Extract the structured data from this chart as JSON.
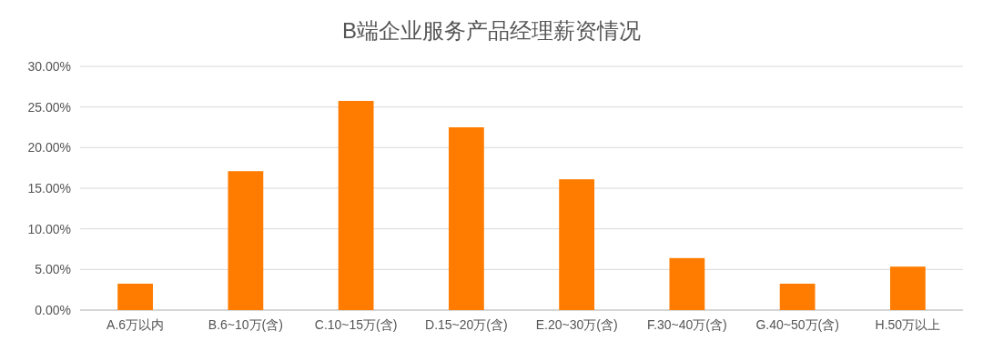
{
  "chart_data": {
    "type": "bar",
    "title": "B端企业服务产品经理薪资情况",
    "categories": [
      "A.6万以内",
      "B.6~10万(含)",
      "C.10~15万(含)",
      "D.15~20万(含)",
      "E.20~30万(含)",
      "F.30~40万(含)",
      "G.40~50万(含)",
      "H.50万以上"
    ],
    "values": [
      3.25,
      17.1,
      25.75,
      22.5,
      16.1,
      6.4,
      3.25,
      5.35
    ],
    "color": "#ff7c00",
    "ylim": [
      0,
      30
    ],
    "yticks": [
      {
        "value": 0,
        "label": "0.00%"
      },
      {
        "value": 5,
        "label": "5.00%"
      },
      {
        "value": 10,
        "label": "10.00%"
      },
      {
        "value": 15,
        "label": "15.00%"
      },
      {
        "value": 20,
        "label": "20.00%"
      },
      {
        "value": 25,
        "label": "25.00%"
      },
      {
        "value": 30,
        "label": "30.00%"
      }
    ],
    "grid": "y"
  }
}
